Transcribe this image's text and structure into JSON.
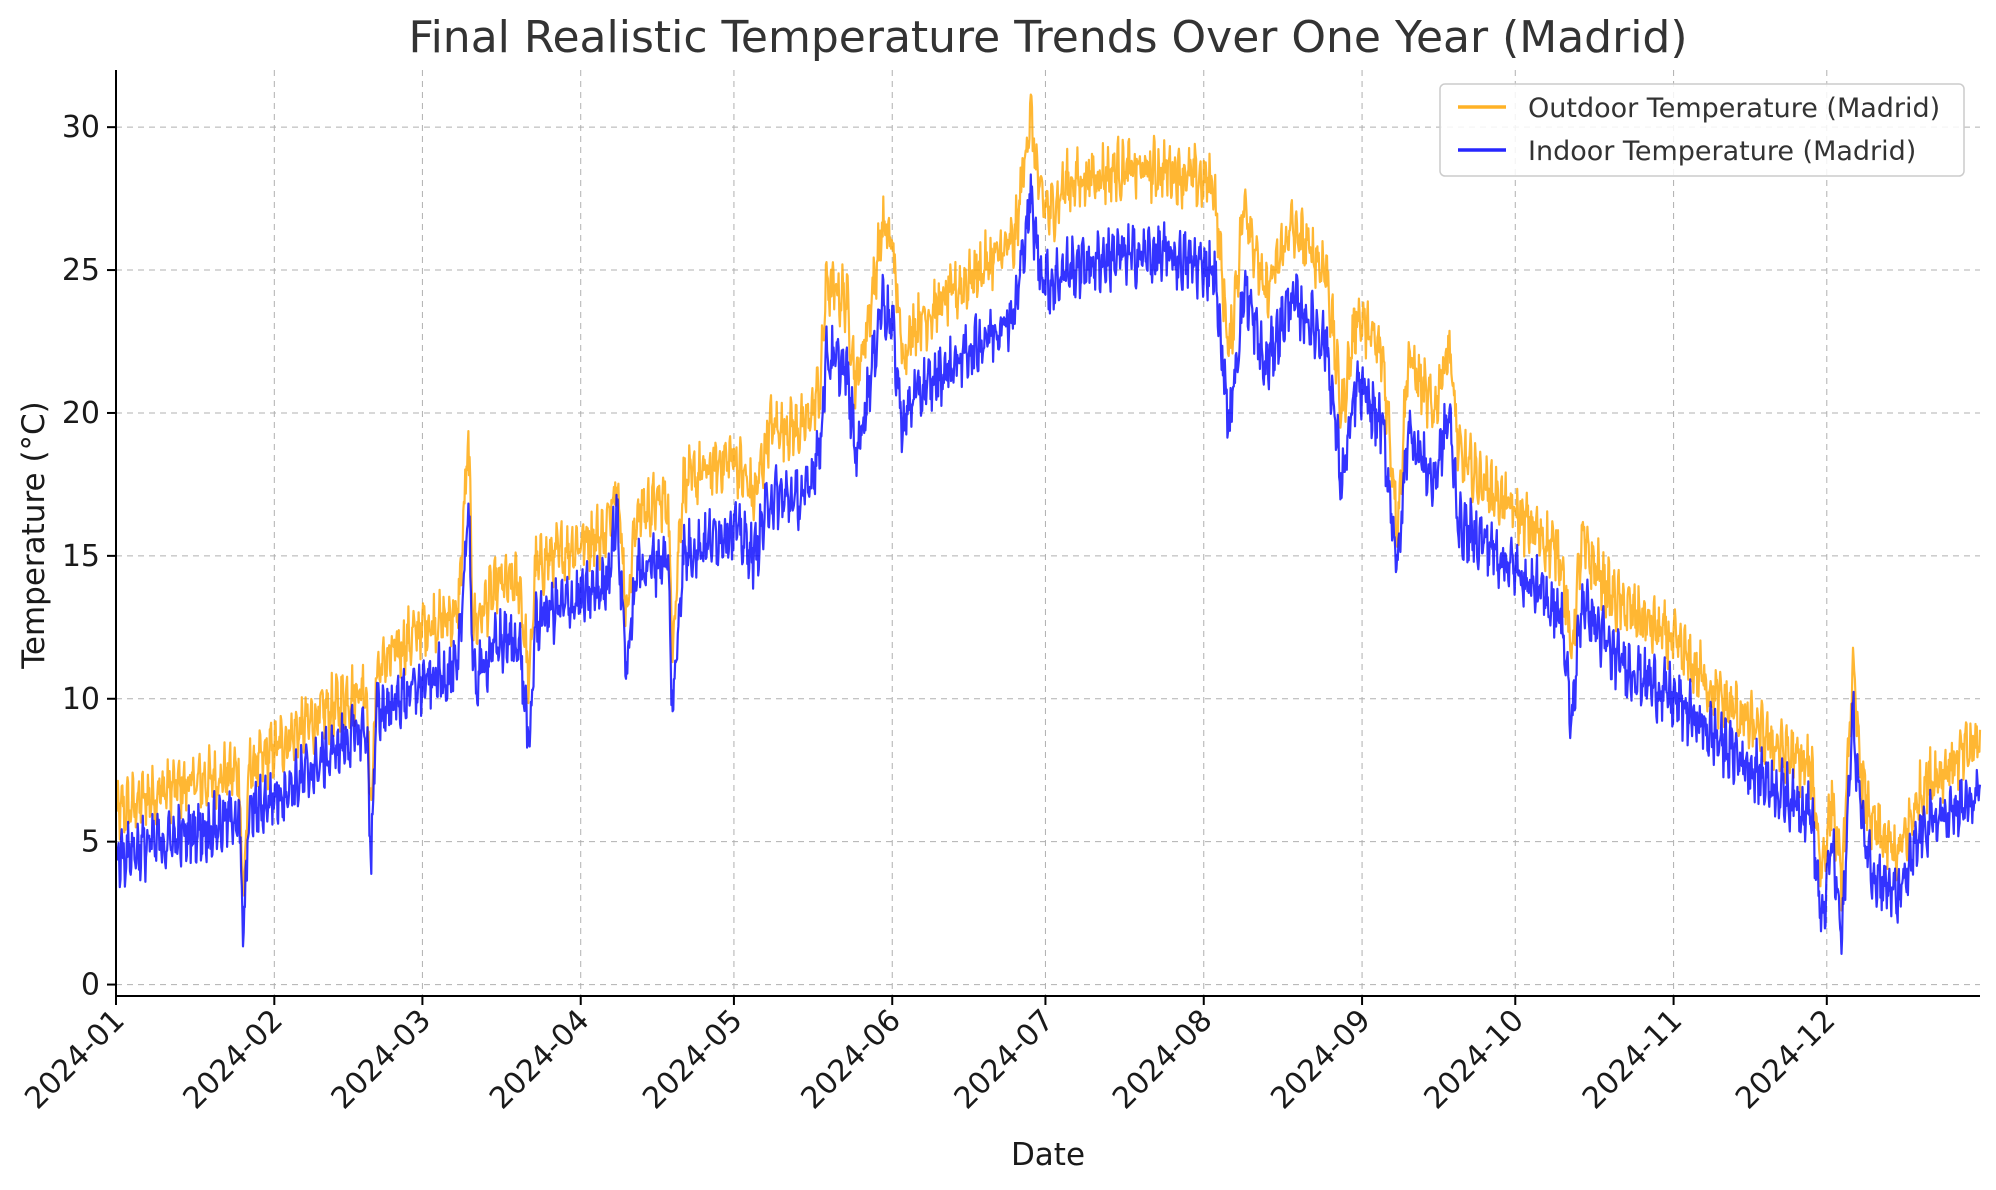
{
  "chart_data": {
    "type": "line",
    "title": "Final Realistic Temperature Trends Over One Year (Madrid)",
    "xlabel": "Date",
    "ylabel": "Temperature (°C)",
    "x_ticks": [
      "2024-01",
      "2024-02",
      "2024-03",
      "2024-04",
      "2024-05",
      "2024-06",
      "2024-07",
      "2024-08",
      "2024-09",
      "2024-10",
      "2024-11",
      "2024-12"
    ],
    "y_ticks": [
      0,
      5,
      10,
      15,
      20,
      25,
      30
    ],
    "xlim": [
      "2024-01-01",
      "2024-12-31"
    ],
    "ylim": [
      -0.4,
      32
    ],
    "grid": true,
    "legend_position": "top-right",
    "series": [
      {
        "name": "Outdoor Temperature (Madrid)",
        "color": "#ffa500",
        "x": [
          "2024-01-01",
          "2024-01-10",
          "2024-01-20",
          "2024-01-25",
          "2024-01-26",
          "2024-01-27",
          "2024-02-05",
          "2024-02-15",
          "2024-02-19",
          "2024-02-20",
          "2024-02-21",
          "2024-03-01",
          "2024-03-08",
          "2024-03-10",
          "2024-03-11",
          "2024-03-14",
          "2024-03-16",
          "2024-03-20",
          "2024-03-22",
          "2024-03-23",
          "2024-03-25",
          "2024-04-01",
          "2024-04-06",
          "2024-04-08",
          "2024-04-10",
          "2024-04-12",
          "2024-04-18",
          "2024-04-19",
          "2024-04-21",
          "2024-05-01",
          "2024-05-05",
          "2024-05-08",
          "2024-05-15",
          "2024-05-18",
          "2024-05-19",
          "2024-05-23",
          "2024-05-25",
          "2024-05-28",
          "2024-05-30",
          "2024-06-01",
          "2024-06-03",
          "2024-06-05",
          "2024-06-15",
          "2024-06-25",
          "2024-06-28",
          "2024-06-30",
          "2024-07-02",
          "2024-07-05",
          "2024-07-15",
          "2024-07-25",
          "2024-08-03",
          "2024-08-06",
          "2024-08-09",
          "2024-08-13",
          "2024-08-18",
          "2024-08-25",
          "2024-08-28",
          "2024-08-31",
          "2024-09-05",
          "2024-09-08",
          "2024-09-10",
          "2024-09-15",
          "2024-09-18",
          "2024-09-20",
          "2024-09-25",
          "2024-10-01",
          "2024-10-10",
          "2024-10-12",
          "2024-10-14",
          "2024-10-20",
          "2024-11-01",
          "2024-11-10",
          "2024-11-20",
          "2024-11-28",
          "2024-11-30",
          "2024-12-02",
          "2024-12-04",
          "2024-12-06",
          "2024-12-08",
          "2024-12-10",
          "2024-12-15",
          "2024-12-20",
          "2024-12-31"
        ],
        "y": [
          6.0,
          6.8,
          7.2,
          7.5,
          3.0,
          7.5,
          8.8,
          10.0,
          10.5,
          6.0,
          11.0,
          12.5,
          13.0,
          19.0,
          12.5,
          13.5,
          14.0,
          14.0,
          10.5,
          14.5,
          14.8,
          15.5,
          15.8,
          18.0,
          13.0,
          16.5,
          17.0,
          12.0,
          17.5,
          18.5,
          17.0,
          19.5,
          19.5,
          21.0,
          24.5,
          24.0,
          21.0,
          24.0,
          26.5,
          26.0,
          22.0,
          23.0,
          24.5,
          26.0,
          30.5,
          27.5,
          27.0,
          28.0,
          28.5,
          28.5,
          28.0,
          22.0,
          27.5,
          24.0,
          26.5,
          25.0,
          20.0,
          23.5,
          22.0,
          16.0,
          22.0,
          20.0,
          22.5,
          18.5,
          17.5,
          16.5,
          15.0,
          11.5,
          15.5,
          13.5,
          12.0,
          10.0,
          8.5,
          7.5,
          4.0,
          6.5,
          3.5,
          11.0,
          7.0,
          5.5,
          4.5,
          7.0,
          8.5
        ]
      },
      {
        "name": "Indoor Temperature (Madrid)",
        "color": "#0000ff",
        "x": [
          "2024-01-01",
          "2024-01-10",
          "2024-01-20",
          "2024-01-25",
          "2024-01-26",
          "2024-01-27",
          "2024-02-05",
          "2024-02-15",
          "2024-02-19",
          "2024-02-20",
          "2024-02-21",
          "2024-03-01",
          "2024-03-08",
          "2024-03-10",
          "2024-03-11",
          "2024-03-14",
          "2024-03-16",
          "2024-03-20",
          "2024-03-22",
          "2024-03-23",
          "2024-03-25",
          "2024-04-01",
          "2024-04-06",
          "2024-04-08",
          "2024-04-10",
          "2024-04-12",
          "2024-04-18",
          "2024-04-19",
          "2024-04-21",
          "2024-05-01",
          "2024-05-05",
          "2024-05-08",
          "2024-05-15",
          "2024-05-18",
          "2024-05-19",
          "2024-05-23",
          "2024-05-25",
          "2024-05-28",
          "2024-05-30",
          "2024-06-01",
          "2024-06-03",
          "2024-06-05",
          "2024-06-15",
          "2024-06-25",
          "2024-06-28",
          "2024-06-30",
          "2024-07-02",
          "2024-07-05",
          "2024-07-15",
          "2024-07-25",
          "2024-08-03",
          "2024-08-06",
          "2024-08-09",
          "2024-08-13",
          "2024-08-18",
          "2024-08-25",
          "2024-08-28",
          "2024-08-31",
          "2024-09-05",
          "2024-09-08",
          "2024-09-10",
          "2024-09-15",
          "2024-09-18",
          "2024-09-20",
          "2024-09-25",
          "2024-10-01",
          "2024-10-10",
          "2024-10-12",
          "2024-10-14",
          "2024-10-20",
          "2024-11-01",
          "2024-11-10",
          "2024-11-20",
          "2024-11-28",
          "2024-11-30",
          "2024-12-02",
          "2024-12-04",
          "2024-12-06",
          "2024-12-08",
          "2024-12-10",
          "2024-12-15",
          "2024-12-20",
          "2024-12-31"
        ],
        "y": [
          4.5,
          5.0,
          5.5,
          6.0,
          1.5,
          6.0,
          7.0,
          8.5,
          9.0,
          4.5,
          9.5,
          10.5,
          11.0,
          17.0,
          10.5,
          11.5,
          12.0,
          12.0,
          8.0,
          12.5,
          13.0,
          13.5,
          14.0,
          16.5,
          11.0,
          14.5,
          15.0,
          9.5,
          15.0,
          16.0,
          15.0,
          17.0,
          17.0,
          19.0,
          22.0,
          21.5,
          18.5,
          21.5,
          24.0,
          23.0,
          19.5,
          20.5,
          22.0,
          23.5,
          27.5,
          25.0,
          24.5,
          25.0,
          25.5,
          25.5,
          25.0,
          19.5,
          24.5,
          21.5,
          24.0,
          22.5,
          17.5,
          21.0,
          19.5,
          14.5,
          19.5,
          17.5,
          20.0,
          16.0,
          15.5,
          14.5,
          13.0,
          9.0,
          13.5,
          11.5,
          10.0,
          8.5,
          7.0,
          6.0,
          2.0,
          5.0,
          1.5,
          9.5,
          5.5,
          4.0,
          3.0,
          5.5,
          6.5
        ]
      }
    ]
  }
}
